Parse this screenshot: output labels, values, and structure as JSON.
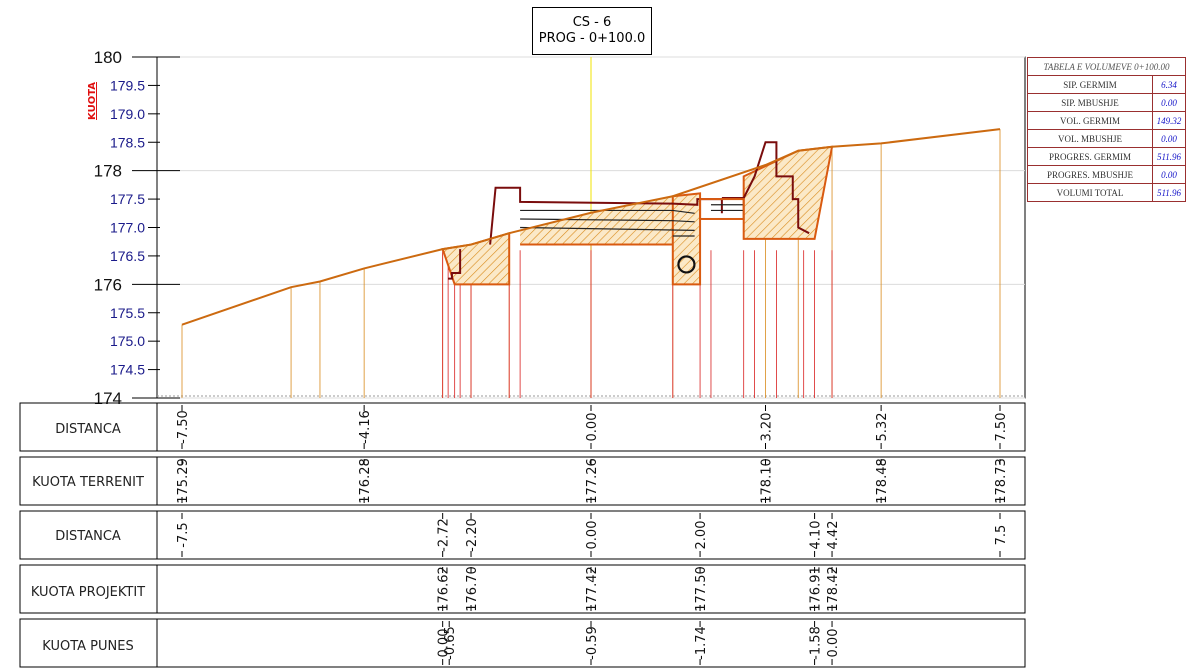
{
  "title": {
    "line1": "CS - 6",
    "line2": "PROG - 0+100.0"
  },
  "axis": {
    "label": "KUOTA",
    "ticks_major": [
      "174",
      "176",
      "178",
      "180"
    ],
    "ticks_minor": [
      "174.5",
      "175.0",
      "175.5",
      "176.5",
      "177.0",
      "177.5",
      "178.5",
      "179.0",
      "179.5"
    ]
  },
  "chart_data": {
    "type": "cross-section",
    "ylim": [
      174,
      180
    ],
    "xlim": [
      -7.5,
      7.5
    ],
    "terrain": {
      "x": [
        -7.5,
        -5.5,
        -4.97,
        -4.16,
        -2.72,
        -2.2,
        -1.5,
        0.0,
        1.5,
        3.2,
        3.8,
        4.42,
        5.32,
        7.5
      ],
      "y": [
        175.29,
        175.95,
        176.05,
        176.28,
        176.62,
        176.7,
        176.9,
        177.26,
        177.55,
        178.1,
        178.35,
        178.42,
        178.48,
        178.73
      ]
    },
    "hatch_color": "#d98b1c",
    "terrain_color": "#cc6a10",
    "road_color": "#7a0d0d"
  },
  "bands": [
    {
      "label": "DISTANCA",
      "values": [
        {
          "x": -7.5,
          "text": "-7.50"
        },
        {
          "x": -4.16,
          "text": "-4.16"
        },
        {
          "x": 0.0,
          "text": "0.00"
        },
        {
          "x": 3.2,
          "text": "3.20"
        },
        {
          "x": 5.32,
          "text": "5.32"
        },
        {
          "x": 7.5,
          "text": "7.50"
        }
      ]
    },
    {
      "label": "KUOTA TERRENIT",
      "values": [
        {
          "x": -7.5,
          "text": "175.29"
        },
        {
          "x": -4.16,
          "text": "176.28"
        },
        {
          "x": 0.0,
          "text": "177.26"
        },
        {
          "x": 3.2,
          "text": "178.10"
        },
        {
          "x": 5.32,
          "text": "178.48"
        },
        {
          "x": 7.5,
          "text": "178.73"
        }
      ]
    },
    {
      "label": "DISTANCA",
      "values": [
        {
          "x": -7.5,
          "text": "-7.5"
        },
        {
          "x": -2.72,
          "text": "-2.72"
        },
        {
          "x": -2.2,
          "text": "-2.20"
        },
        {
          "x": 0.0,
          "text": "0.00"
        },
        {
          "x": 2.0,
          "text": "2.00"
        },
        {
          "x": 4.1,
          "text": "4.10"
        },
        {
          "x": 4.42,
          "text": "4.42"
        },
        {
          "x": 7.5,
          "text": "7.5"
        }
      ]
    },
    {
      "label": "KUOTA PROJEKTIT",
      "values": [
        {
          "x": -2.72,
          "text": "176.62"
        },
        {
          "x": -2.2,
          "text": "176.70"
        },
        {
          "x": 0.0,
          "text": "177.42"
        },
        {
          "x": 2.0,
          "text": "177.50"
        },
        {
          "x": 4.1,
          "text": "176.91"
        },
        {
          "x": 4.42,
          "text": "178.42"
        }
      ]
    },
    {
      "label": "KUOTA PUNES",
      "values": [
        {
          "x": -2.72,
          "text": "0.00"
        },
        {
          "x": -2.6,
          "text": "-0.65"
        },
        {
          "x": 0.0,
          "text": "-0.59"
        },
        {
          "x": 2.0,
          "text": "-1.74"
        },
        {
          "x": 4.1,
          "text": "-1.58"
        },
        {
          "x": 4.42,
          "text": "0.00"
        }
      ]
    }
  ],
  "volume_table": {
    "header": "TABELA E VOLUMEVE 0+100.00",
    "rows": [
      {
        "label": "SIP. GERMIM",
        "value": "6.34"
      },
      {
        "label": "SIP. MBUSHJE",
        "value": "0.00"
      },
      {
        "label": "VOL. GERMIM",
        "value": "149.32"
      },
      {
        "label": "VOL. MBUSHJE",
        "value": "0.00"
      },
      {
        "label": "PROGRES. GERMIM",
        "value": "511.96"
      },
      {
        "label": "PROGRES. MBUSHJE",
        "value": "0.00"
      },
      {
        "label": "VOLUMI TOTAL",
        "value": "511.96"
      }
    ]
  }
}
